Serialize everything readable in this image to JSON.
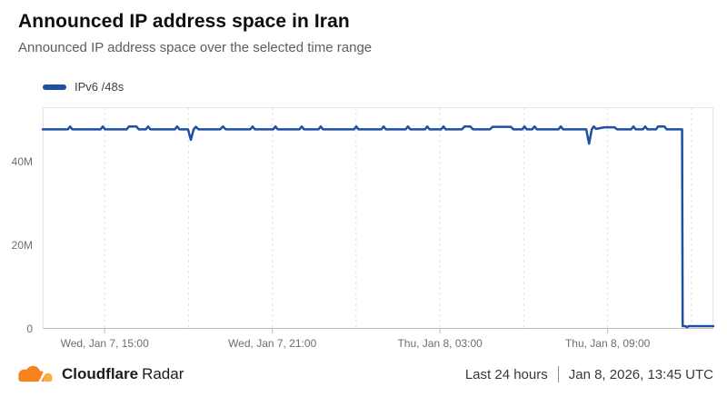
{
  "header": {
    "title": "Announced IP address space in Iran",
    "subtitle": "Announced IP address space over the selected time range"
  },
  "legend": {
    "series_label": "IPv6 /48s"
  },
  "colors": {
    "line_blue": "#1d4fa3",
    "logo_orange": "#f6821f",
    "logo_light_orange": "#fbad41",
    "grid_gray": "#dcdcdc",
    "axis_gray": "#bdbdbd"
  },
  "chart_data": {
    "type": "line",
    "title": "Announced IP address space in Iran",
    "xlabel": "",
    "ylabel": "",
    "x_unit": "hours from start of 24h window (Jan 7 ~12:45 UTC)",
    "x_range": [
      0,
      24
    ],
    "ylim": [
      0,
      53
    ],
    "grid": "vertical-dashed",
    "legend_position": "top-left",
    "y_ticks": [
      {
        "value": 0,
        "label": "0"
      },
      {
        "value": 20,
        "label": "20M"
      },
      {
        "value": 40,
        "label": "40M"
      }
    ],
    "x_ticks": [
      {
        "t": 2.2167,
        "label": "Wed, Jan 7, 15:00"
      },
      {
        "t": 8.2167,
        "label": "Wed, Jan 7, 21:00"
      },
      {
        "t": 14.2167,
        "label": "Thu, Jan 8, 03:00"
      },
      {
        "t": 20.2167,
        "label": "Thu, Jan 8, 09:00"
      }
    ],
    "gridlines_t": [
      2.2167,
      5.2167,
      8.2167,
      11.2167,
      14.2167,
      17.2167,
      20.2167,
      23.2167
    ],
    "series": [
      {
        "name": "IPv6 /48s",
        "color": "#1d4fa3",
        "unit": "millions of /48s",
        "baseline_value_m": 47.7,
        "final_value_m": 0.65,
        "points": [
          [
            0,
            47.7
          ],
          [
            0.9,
            47.7
          ],
          [
            0.98,
            48.4
          ],
          [
            1.06,
            47.7
          ],
          [
            2.07,
            47.7
          ],
          [
            2.15,
            48.4
          ],
          [
            2.23,
            47.7
          ],
          [
            3.0,
            47.7
          ],
          [
            3.09,
            48.4
          ],
          [
            3.35,
            48.4
          ],
          [
            3.44,
            47.7
          ],
          [
            3.69,
            47.7
          ],
          [
            3.77,
            48.4
          ],
          [
            3.85,
            47.7
          ],
          [
            4.73,
            47.7
          ],
          [
            4.81,
            48.4
          ],
          [
            4.89,
            47.7
          ],
          [
            5.2,
            47.7
          ],
          [
            5.3,
            45.2
          ],
          [
            5.4,
            47.7
          ],
          [
            5.48,
            48.3
          ],
          [
            5.58,
            47.7
          ],
          [
            6.35,
            47.7
          ],
          [
            6.45,
            48.4
          ],
          [
            6.55,
            47.7
          ],
          [
            7.43,
            47.7
          ],
          [
            7.51,
            48.4
          ],
          [
            7.59,
            47.7
          ],
          [
            8.25,
            47.7
          ],
          [
            8.33,
            48.4
          ],
          [
            8.41,
            47.7
          ],
          [
            9.19,
            47.7
          ],
          [
            9.27,
            48.4
          ],
          [
            9.35,
            47.7
          ],
          [
            9.87,
            47.7
          ],
          [
            9.95,
            48.4
          ],
          [
            10.03,
            47.7
          ],
          [
            11.14,
            47.7
          ],
          [
            11.22,
            48.4
          ],
          [
            11.3,
            47.7
          ],
          [
            12.12,
            47.7
          ],
          [
            12.2,
            48.4
          ],
          [
            12.28,
            47.7
          ],
          [
            12.99,
            47.7
          ],
          [
            13.07,
            48.4
          ],
          [
            13.15,
            47.7
          ],
          [
            13.68,
            47.7
          ],
          [
            13.76,
            48.4
          ],
          [
            13.84,
            47.7
          ],
          [
            14.26,
            47.7
          ],
          [
            14.34,
            48.4
          ],
          [
            14.42,
            47.7
          ],
          [
            15.0,
            47.7
          ],
          [
            15.1,
            48.4
          ],
          [
            15.3,
            48.4
          ],
          [
            15.4,
            47.7
          ],
          [
            16.0,
            47.7
          ],
          [
            16.1,
            48.3
          ],
          [
            16.75,
            48.3
          ],
          [
            16.85,
            47.7
          ],
          [
            17.16,
            47.7
          ],
          [
            17.24,
            48.4
          ],
          [
            17.32,
            47.7
          ],
          [
            17.52,
            47.7
          ],
          [
            17.6,
            48.4
          ],
          [
            17.68,
            47.7
          ],
          [
            18.46,
            47.7
          ],
          [
            18.54,
            48.4
          ],
          [
            18.62,
            47.7
          ],
          [
            19.45,
            47.7
          ],
          [
            19.55,
            44.3
          ],
          [
            19.65,
            47.7
          ],
          [
            19.72,
            48.4
          ],
          [
            19.8,
            47.8
          ],
          [
            20.1,
            48.2
          ],
          [
            20.46,
            48.2
          ],
          [
            20.56,
            47.7
          ],
          [
            21.06,
            47.7
          ],
          [
            21.14,
            48.4
          ],
          [
            21.22,
            47.7
          ],
          [
            21.48,
            47.7
          ],
          [
            21.56,
            48.4
          ],
          [
            21.64,
            47.7
          ],
          [
            21.95,
            47.7
          ],
          [
            22.02,
            48.4
          ],
          [
            22.25,
            48.4
          ],
          [
            22.33,
            47.7
          ],
          [
            22.88,
            47.7
          ],
          [
            22.9,
            0.65
          ],
          [
            23.0,
            0.65
          ],
          [
            23.05,
            0.4
          ],
          [
            23.12,
            0.65
          ],
          [
            24,
            0.65
          ]
        ]
      }
    ]
  },
  "footer": {
    "brand_bold": "Cloudflare",
    "brand_regular": "Radar",
    "time_range": "Last 24 hours",
    "timestamp": "Jan 8, 2026, 13:45 UTC"
  }
}
